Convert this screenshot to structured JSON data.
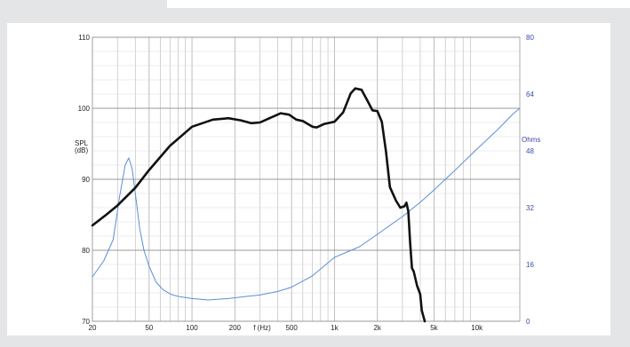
{
  "chart_data": {
    "type": "line",
    "title": "",
    "xlabel": "f (Hz)",
    "ylabel": "SPL\n(dB)",
    "y2label": "Ohms",
    "x_scale": "log",
    "xlim": [
      20,
      20000
    ],
    "ylim": [
      70,
      110
    ],
    "y2lim": [
      0,
      80
    ],
    "x_ticks": [
      20,
      50,
      100,
      200,
      500,
      1000,
      2000,
      5000,
      10000
    ],
    "x_tick_labels": [
      "20",
      "50",
      "100",
      "200",
      "500",
      "1k",
      "2k",
      "5k",
      "10k"
    ],
    "y_ticks": [
      70,
      80,
      90,
      100,
      110
    ],
    "y2_ticks": [
      0,
      16,
      32,
      48,
      64,
      80
    ],
    "grid": true,
    "colors": {
      "spl": "#111111",
      "impedance": "#5b8fd6",
      "right_axis": "#3a4aa8",
      "grid": "#b5b5b5"
    },
    "series": [
      {
        "axis": "left",
        "x": [
          20,
          25,
          30,
          40,
          50,
          70,
          100,
          140,
          180,
          220,
          260,
          300,
          350,
          420,
          480,
          540,
          600,
          700,
          750,
          850,
          1000,
          1150,
          1300,
          1400,
          1550,
          1700,
          1850,
          2000,
          2150,
          2300,
          2450,
          2700,
          2900,
          3100,
          3200,
          3300,
          3400,
          3500,
          3600,
          3800,
          4000,
          4100,
          4300
        ],
        "values": [
          83.5,
          85,
          86.3,
          88.8,
          91.3,
          94.7,
          97.4,
          98.4,
          98.6,
          98.3,
          97.9,
          98.0,
          98.6,
          99.3,
          99.1,
          98.4,
          98.2,
          97.4,
          97.3,
          97.8,
          98.1,
          99.4,
          102.1,
          102.8,
          102.6,
          101.1,
          99.7,
          99.6,
          98.1,
          93.9,
          88.9,
          87.0,
          86.0,
          86.2,
          86.7,
          85.5,
          81.0,
          77.5,
          77.0,
          75.0,
          73.8,
          71.5,
          70.0
        ]
      },
      {
        "axis": "right",
        "x": [
          20,
          24,
          28,
          31,
          34,
          36,
          38,
          40,
          43,
          46,
          50,
          56,
          63,
          71,
          80,
          100,
          130,
          180,
          230,
          300,
          400,
          500,
          700,
          1000,
          1500,
          2000,
          3000,
          4000,
          5000,
          7000,
          10000,
          14000,
          18000,
          20000
        ],
        "values": [
          12.5,
          17,
          23,
          35,
          44,
          46,
          43,
          36,
          26,
          20,
          15.5,
          11,
          8.8,
          7.6,
          7.0,
          6.4,
          6.0,
          6.4,
          6.9,
          7.4,
          8.4,
          9.6,
          12.8,
          18,
          21,
          24.5,
          29.5,
          33.5,
          37,
          42.5,
          48.5,
          54,
          58.5,
          60
        ]
      }
    ]
  }
}
